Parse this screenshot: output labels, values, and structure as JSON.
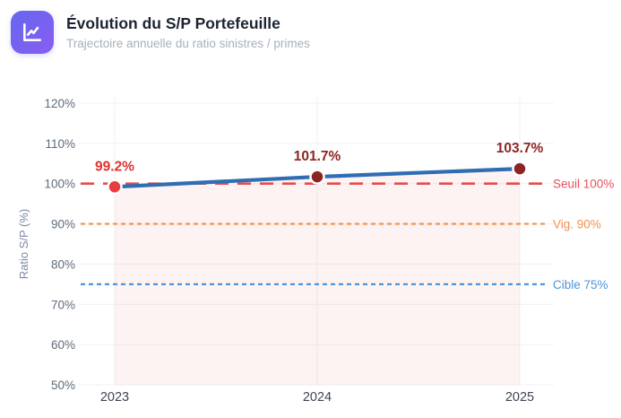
{
  "header": {
    "title": "Évolution du S/P Portefeuille",
    "subtitle": "Trajectoire annuelle du ratio sinistres / primes",
    "icon": "line-chart-icon",
    "icon_colors": [
      "#6467ef",
      "#8a5df2"
    ]
  },
  "chart_data": {
    "type": "line",
    "title": "Évolution du S/P Portefeuille",
    "subtitle": "Trajectoire annuelle du ratio sinistres / primes",
    "x": [
      "2023",
      "2024",
      "2025"
    ],
    "series": [
      {
        "name": "Ratio S/P",
        "values": [
          99.2,
          101.7,
          103.7
        ],
        "color": "#2f6eb3",
        "point_labels": [
          "99.2%",
          "101.7%",
          "103.7%"
        ],
        "point_colors": [
          "#e83e3e",
          "#8c2424",
          "#8c2424"
        ],
        "label_colors": [
          "#e03030",
          "#8c2424",
          "#8c2424"
        ]
      }
    ],
    "ylabel": "Ratio S/P (%)",
    "ylim": [
      50,
      120
    ],
    "yticks": [
      50,
      60,
      70,
      80,
      90,
      100,
      110,
      120
    ],
    "ytick_suffix": "%",
    "grid": true,
    "legend": "none",
    "area_fill_color": "rgba(232,84,66,0.07)",
    "reference_lines": [
      {
        "label": "Seuil 100%",
        "value": 100,
        "line_color": "#e64c4c",
        "label_color": "#e8505e",
        "style": "dashed"
      },
      {
        "label": "Vig. 90%",
        "value": 90,
        "line_color": "#f0924d",
        "label_color": "#f0924d",
        "style": "dotted"
      },
      {
        "label": "Cible 75%",
        "value": 75,
        "line_color": "#4f94d6",
        "label_color": "#4f94d6",
        "style": "dotted"
      }
    ]
  }
}
